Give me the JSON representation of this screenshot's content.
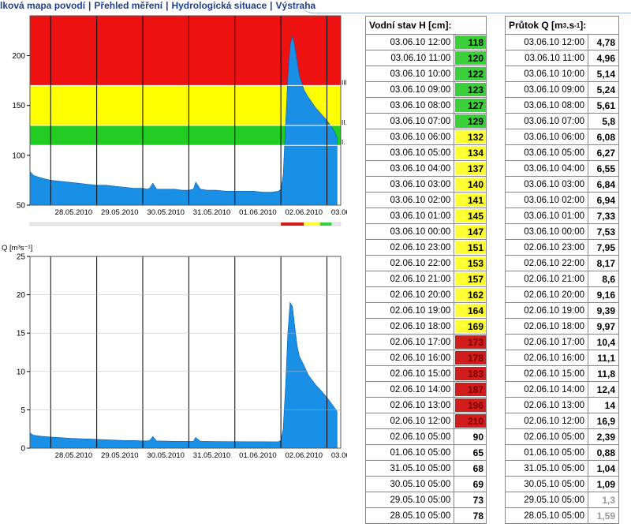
{
  "nav": {
    "items": [
      "lková mapa povodí",
      "Přehled měření",
      "Hydrologická situace",
      "Výstraha"
    ],
    "separator": "|"
  },
  "chart_data": [
    {
      "type": "area",
      "title": "",
      "ylabel": "",
      "ylim": [
        50,
        240
      ],
      "yticks": [
        "50",
        "100",
        "150",
        "200"
      ],
      "xticks": [
        "28.05.2010",
        "29.05.2010",
        "30.05.2010",
        "31.05.2010",
        "01.06.2010",
        "02.06.2010",
        "03.06.2010"
      ],
      "xlim_days": [
        27.55,
        34.3
      ],
      "bands": [
        {
          "from": 110,
          "to": 130,
          "color": "#22cc22",
          "label": "I."
        },
        {
          "from": 130,
          "to": 170,
          "color": "#ffff00",
          "label": "II."
        },
        {
          "from": 170,
          "to": 240,
          "color": "#ee1111",
          "label": "III."
        }
      ],
      "fill_color": "#1a8fe6",
      "series": [
        {
          "x": [
            27.55,
            27.62,
            27.75,
            27.9,
            28.0,
            28.2,
            28.4,
            28.6,
            28.8,
            29.0,
            29.2,
            29.4,
            29.6,
            29.8,
            30.0,
            30.1,
            30.15,
            30.22,
            30.3,
            30.5,
            30.7,
            30.85,
            31.0,
            31.1,
            31.15,
            31.25,
            31.4,
            31.6,
            31.8,
            32.0,
            32.2,
            32.4,
            32.6,
            32.8,
            32.95,
            33.0,
            33.05,
            33.1,
            33.15,
            33.2,
            33.25,
            33.3,
            33.35,
            33.4,
            33.5,
            33.6,
            33.75,
            33.9,
            34.0,
            34.15,
            34.22
          ],
          "y": [
            84,
            80,
            78,
            76,
            75,
            74,
            73,
            72,
            71,
            70,
            70,
            69,
            68,
            67,
            67,
            66,
            67,
            72,
            66,
            66,
            66,
            65,
            65,
            66,
            73,
            66,
            65,
            65,
            64,
            64,
            64,
            64,
            63,
            63,
            64,
            66,
            80,
            130,
            178,
            210,
            220,
            210,
            195,
            180,
            166,
            158,
            148,
            140,
            135,
            125,
            118
          ]
        }
      ]
    },
    {
      "type": "area",
      "title": "",
      "ylabel": "Q [m³s⁻¹]",
      "ylim": [
        0,
        25
      ],
      "yticks": [
        "0",
        "5",
        "10",
        "15",
        "20",
        "25"
      ],
      "xticks": [
        "28.05.2010",
        "29.05.2010",
        "30.05.2010",
        "31.05.2010",
        "01.06.2010",
        "02.06.2010",
        "03.06.2010"
      ],
      "xlim_days": [
        27.55,
        34.3
      ],
      "fill_color": "#1a8fe6",
      "series": [
        {
          "x": [
            27.55,
            27.62,
            27.8,
            28.0,
            28.2,
            28.4,
            28.6,
            28.8,
            29.0,
            29.2,
            29.4,
            29.6,
            29.8,
            30.0,
            30.1,
            30.15,
            30.22,
            30.3,
            30.5,
            30.7,
            30.85,
            31.0,
            31.1,
            31.15,
            31.25,
            31.4,
            31.6,
            31.8,
            32.0,
            32.2,
            32.4,
            32.6,
            32.8,
            32.95,
            33.0,
            33.05,
            33.1,
            33.15,
            33.2,
            33.25,
            33.3,
            33.35,
            33.4,
            33.5,
            33.6,
            33.75,
            33.9,
            34.0,
            34.15,
            34.22
          ],
          "y": [
            2.0,
            1.7,
            1.55,
            1.45,
            1.38,
            1.3,
            1.25,
            1.2,
            1.15,
            1.1,
            1.05,
            1.0,
            1.0,
            0.95,
            0.95,
            1.0,
            1.5,
            0.95,
            0.92,
            0.9,
            0.9,
            0.88,
            0.9,
            1.4,
            0.9,
            0.88,
            0.86,
            0.85,
            0.85,
            0.84,
            0.84,
            0.84,
            0.83,
            0.84,
            1.0,
            2.5,
            8.0,
            15.0,
            19.0,
            18.5,
            16.0,
            13.5,
            12.0,
            10.8,
            9.5,
            8.3,
            7.3,
            6.6,
            5.4,
            4.8
          ]
        }
      ]
    }
  ],
  "level_table": {
    "header": "Vodní stav H [cm]:",
    "rows": [
      {
        "date": "03.06.10 12:00",
        "value": "118",
        "level": "green"
      },
      {
        "date": "03.06.10 11:00",
        "value": "120",
        "level": "green"
      },
      {
        "date": "03.06.10 10:00",
        "value": "122",
        "level": "green"
      },
      {
        "date": "03.06.10 09:00",
        "value": "123",
        "level": "green"
      },
      {
        "date": "03.06.10 08:00",
        "value": "127",
        "level": "green"
      },
      {
        "date": "03.06.10 07:00",
        "value": "129",
        "level": "green"
      },
      {
        "date": "03.06.10 06:00",
        "value": "132",
        "level": "yellow"
      },
      {
        "date": "03.06.10 05:00",
        "value": "134",
        "level": "yellow"
      },
      {
        "date": "03.06.10 04:00",
        "value": "137",
        "level": "yellow"
      },
      {
        "date": "03.06.10 03:00",
        "value": "140",
        "level": "yellow"
      },
      {
        "date": "03.06.10 02:00",
        "value": "141",
        "level": "yellow"
      },
      {
        "date": "03.06.10 01:00",
        "value": "145",
        "level": "yellow"
      },
      {
        "date": "03.06.10 00:00",
        "value": "147",
        "level": "yellow"
      },
      {
        "date": "02.06.10 23:00",
        "value": "151",
        "level": "yellow"
      },
      {
        "date": "02.06.10 22:00",
        "value": "153",
        "level": "yellow"
      },
      {
        "date": "02.06.10 21:00",
        "value": "157",
        "level": "yellow"
      },
      {
        "date": "02.06.10 20:00",
        "value": "162",
        "level": "yellow"
      },
      {
        "date": "02.06.10 19:00",
        "value": "164",
        "level": "yellow"
      },
      {
        "date": "02.06.10 18:00",
        "value": "169",
        "level": "yellow"
      },
      {
        "date": "02.06.10 17:00",
        "value": "173",
        "level": "red"
      },
      {
        "date": "02.06.10 16:00",
        "value": "178",
        "level": "red"
      },
      {
        "date": "02.06.10 15:00",
        "value": "183",
        "level": "red"
      },
      {
        "date": "02.06.10 14:00",
        "value": "187",
        "level": "red"
      },
      {
        "date": "02.06.10 13:00",
        "value": "196",
        "level": "red"
      },
      {
        "date": "02.06.10 12:00",
        "value": "210",
        "level": "red"
      },
      {
        "date": "02.06.10 05:00",
        "value": "90",
        "level": "none"
      },
      {
        "date": "01.06.10 05:00",
        "value": "65",
        "level": "none"
      },
      {
        "date": "31.05.10 05:00",
        "value": "68",
        "level": "none"
      },
      {
        "date": "30.05.10 05:00",
        "value": "69",
        "level": "none"
      },
      {
        "date": "29.05.10 05:00",
        "value": "73",
        "level": "none"
      },
      {
        "date": "28.05.10 05:00",
        "value": "78",
        "level": "none"
      }
    ]
  },
  "flow_table": {
    "header_main": "Průtok Q [m",
    "header_sup1": "3",
    "header_mid": ".s",
    "header_sup2": "-1",
    "header_end": "]:",
    "rows": [
      {
        "date": "03.06.10 12:00",
        "value": "4,78"
      },
      {
        "date": "03.06.10 11:00",
        "value": "4,96"
      },
      {
        "date": "03.06.10 10:00",
        "value": "5,14"
      },
      {
        "date": "03.06.10 09:00",
        "value": "5,24"
      },
      {
        "date": "03.06.10 08:00",
        "value": "5,61"
      },
      {
        "date": "03.06.10 07:00",
        "value": "5,8"
      },
      {
        "date": "03.06.10 06:00",
        "value": "6,08"
      },
      {
        "date": "03.06.10 05:00",
        "value": "6,27"
      },
      {
        "date": "03.06.10 04:00",
        "value": "6,55"
      },
      {
        "date": "03.06.10 03:00",
        "value": "6,84"
      },
      {
        "date": "03.06.10 02:00",
        "value": "6,94"
      },
      {
        "date": "03.06.10 01:00",
        "value": "7,33"
      },
      {
        "date": "03.06.10 00:00",
        "value": "7,53"
      },
      {
        "date": "02.06.10 23:00",
        "value": "7,95"
      },
      {
        "date": "02.06.10 22:00",
        "value": "8,17"
      },
      {
        "date": "02.06.10 21:00",
        "value": "8,6"
      },
      {
        "date": "02.06.10 20:00",
        "value": "9,16"
      },
      {
        "date": "02.06.10 19:00",
        "value": "9,39"
      },
      {
        "date": "02.06.10 18:00",
        "value": "9,97"
      },
      {
        "date": "02.06.10 17:00",
        "value": "10,4"
      },
      {
        "date": "02.06.10 16:00",
        "value": "11,1"
      },
      {
        "date": "02.06.10 15:00",
        "value": "11,8"
      },
      {
        "date": "02.06.10 14:00",
        "value": "12,4"
      },
      {
        "date": "02.06.10 13:00",
        "value": "14"
      },
      {
        "date": "02.06.10 12:00",
        "value": "16,9"
      },
      {
        "date": "02.06.10 05:00",
        "value": "2,39"
      },
      {
        "date": "01.06.10 05:00",
        "value": "0,88"
      },
      {
        "date": "31.05.10 05:00",
        "value": "1,04"
      },
      {
        "date": "30.05.10 05:00",
        "value": "1,09"
      },
      {
        "date": "29.05.10 05:00",
        "value": "1,3"
      },
      {
        "date": "28.05.10 05:00",
        "value": "1,59"
      }
    ]
  },
  "colors": {
    "green": "#3ccf3c",
    "yellow": "#ffff33",
    "red": "#d21d1d",
    "nav_link": "#1f3f95",
    "area_fill": "#1a8fe6"
  }
}
